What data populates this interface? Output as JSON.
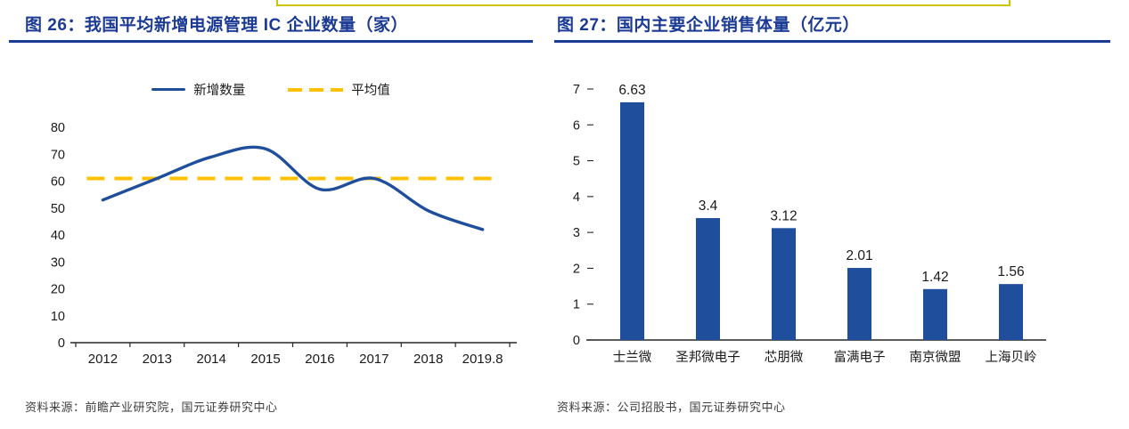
{
  "figures": {
    "left": {
      "title": "图 26：我国平均新增电源管理 IC 企业数量（家）",
      "source": "资料来源：前瞻产业研究院，国元证券研究中心"
    },
    "right": {
      "title": "图 27：国内主要企业销售体量（亿元）",
      "source": "资料来源：公司招股书，国元证券研究中心"
    }
  },
  "chart_data": [
    {
      "type": "line",
      "title": "我国平均新增电源管理IC企业数量（家）",
      "x": [
        "2012",
        "2013",
        "2014",
        "2015",
        "2016",
        "2017",
        "2018",
        "2019.8"
      ],
      "series": [
        {
          "name": "新增数量",
          "style": "solid",
          "color": "#1F4E9C",
          "values": [
            53,
            61,
            69,
            72,
            57,
            61,
            49,
            42
          ]
        },
        {
          "name": "平均值",
          "style": "dashed",
          "color": "#FFC000",
          "values": [
            61,
            61,
            61,
            61,
            61,
            61,
            61,
            61
          ]
        }
      ],
      "average_value": 61,
      "ylim": [
        0,
        80
      ],
      "ytick_step": 10,
      "grid": false,
      "legend_position": "top"
    },
    {
      "type": "bar",
      "title": "国内主要企业销售体量（亿元）",
      "categories": [
        "士兰微",
        "圣邦微电子",
        "芯朋微",
        "富满电子",
        "南京微盟",
        "上海贝岭"
      ],
      "values": [
        6.63,
        3.4,
        3.12,
        2.01,
        1.42,
        1.56
      ],
      "data_labels": [
        "6.63",
        "3.4",
        "3.12",
        "2.01",
        "1.42",
        "1.56"
      ],
      "ylim": [
        0,
        7
      ],
      "ytick_step": 1,
      "bar_color": "#1F4E9C",
      "grid": false,
      "legend_position": "none"
    }
  ],
  "colors": {
    "title_blue": "#1B3A94",
    "rule_blue": "#1B3A94",
    "line_blue": "#1F4E9C",
    "avg_yellow": "#FFC000",
    "bar_blue": "#1F4E9C",
    "axis_black": "#262626",
    "tick_label": "#1a1a1a",
    "highlight_border": "#cdc400"
  }
}
